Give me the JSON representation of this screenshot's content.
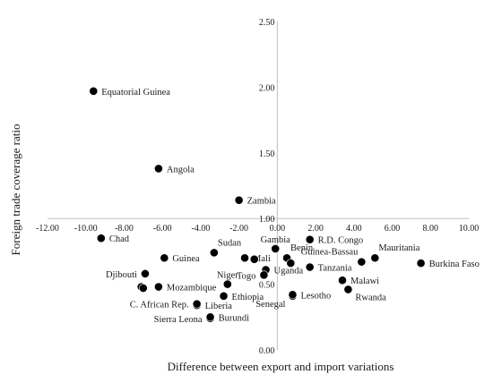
{
  "chart_data": {
    "type": "scatter",
    "title": "",
    "xlabel": "Difference between export and import variations",
    "ylabel": "Foreign trade coverage ratio",
    "xlim": [
      -12,
      10
    ],
    "ylim": [
      0,
      2.5
    ],
    "x_ticks": [
      "-12.00",
      "-10.00",
      "-8.00",
      "-6.00",
      "-4.00",
      "-2.00",
      "0.00",
      "2.00",
      "4.00",
      "6.00",
      "8.00",
      "10.00"
    ],
    "y_ticks": [
      "0.00",
      "0.50",
      "1.00",
      "1.50",
      "2.00",
      "2.50"
    ],
    "x_axis_crosses_y_at": 1.0,
    "y_axis_crosses_x_at": 0,
    "grid": false,
    "legend": "none",
    "marker_color": "#000000",
    "points": [
      {
        "label": "Equatorial Guinea",
        "x": -9.6,
        "y": 1.97,
        "label_pos": "right"
      },
      {
        "label": "Angola",
        "x": -6.2,
        "y": 1.38,
        "label_pos": "right"
      },
      {
        "label": "Zambia",
        "x": -2.0,
        "y": 1.14,
        "label_pos": "right"
      },
      {
        "label": "Chad",
        "x": -9.2,
        "y": 0.85,
        "label_pos": "right"
      },
      {
        "label": "Guinea",
        "x": -5.9,
        "y": 0.7,
        "label_pos": "right"
      },
      {
        "label": "Sudan",
        "x": -3.3,
        "y": 0.74,
        "label_pos": "above-right"
      },
      {
        "label": "Mali",
        "x": -1.7,
        "y": 0.7,
        "label_pos": "right"
      },
      {
        "label": "",
        "x": -1.2,
        "y": 0.69,
        "label_pos": "none"
      },
      {
        "label": "Gambia",
        "x": -0.1,
        "y": 0.77,
        "label_pos": "above"
      },
      {
        "label": "R.D. Congo",
        "x": 1.7,
        "y": 0.84,
        "label_pos": "right"
      },
      {
        "label": "Benin",
        "x": 0.5,
        "y": 0.7,
        "label_pos": "above-right"
      },
      {
        "label": "",
        "x": 0.7,
        "y": 0.66,
        "label_pos": "none"
      },
      {
        "label": "Uganda",
        "x": -0.6,
        "y": 0.61,
        "label_pos": "right"
      },
      {
        "label": "Togo",
        "x": -0.7,
        "y": 0.57,
        "label_pos": "left"
      },
      {
        "label": "Niger",
        "x": -2.6,
        "y": 0.5,
        "label_pos": "above"
      },
      {
        "label": "Djibouti",
        "x": -6.9,
        "y": 0.58,
        "label_pos": "left"
      },
      {
        "label": "Mozambique",
        "x": -6.2,
        "y": 0.48,
        "label_pos": "right"
      },
      {
        "label": "",
        "x": -7.1,
        "y": 0.48,
        "label_pos": "none"
      },
      {
        "label": "",
        "x": -7.0,
        "y": 0.47,
        "label_pos": "none"
      },
      {
        "label": "Tanzania",
        "x": 1.7,
        "y": 0.63,
        "label_pos": "right"
      },
      {
        "label": "Guinea-Bassau",
        "x": 4.4,
        "y": 0.67,
        "label_pos": "above-left"
      },
      {
        "label": "Mauritania",
        "x": 5.1,
        "y": 0.7,
        "label_pos": "above-right"
      },
      {
        "label": "Burkina Faso",
        "x": 7.5,
        "y": 0.66,
        "label_pos": "right"
      },
      {
        "label": "Malawi",
        "x": 3.4,
        "y": 0.53,
        "label_pos": "right"
      },
      {
        "label": "Rwanda",
        "x": 3.7,
        "y": 0.46,
        "label_pos": "below-right"
      },
      {
        "label": "Senegal",
        "x": 0.8,
        "y": 0.41,
        "label_pos": "below-left"
      },
      {
        "label": "Lesotho",
        "x": 0.8,
        "y": 0.42,
        "label_pos": "right"
      },
      {
        "label": "Ethiopia",
        "x": -2.8,
        "y": 0.41,
        "label_pos": "right"
      },
      {
        "label": "Liberia",
        "x": -4.2,
        "y": 0.34,
        "label_pos": "right"
      },
      {
        "label": "C. African Rep.",
        "x": -4.2,
        "y": 0.35,
        "label_pos": "left"
      },
      {
        "label": "Sierra Leona",
        "x": -3.5,
        "y": 0.24,
        "label_pos": "left"
      },
      {
        "label": "Burundi",
        "x": -3.5,
        "y": 0.25,
        "label_pos": "right"
      }
    ]
  }
}
